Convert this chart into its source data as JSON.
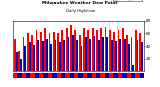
{
  "title": "Milwaukee Weather Dew Point",
  "subtitle": "Daily High/Low",
  "ylim": [
    0,
    80
  ],
  "background_color": "#ffffff",
  "bar_color_high": "#ff0000",
  "bar_color_low": "#0000bb",
  "dotted_line_color": "#888888",
  "high_values": [
    52,
    32,
    55,
    60,
    58,
    65,
    62,
    68,
    60,
    62,
    60,
    65,
    68,
    73,
    65,
    58,
    68,
    65,
    68,
    65,
    68,
    70,
    65,
    62,
    65,
    68,
    58,
    55,
    65,
    60
  ],
  "low_values": [
    30,
    20,
    40,
    46,
    42,
    50,
    48,
    52,
    44,
    50,
    46,
    50,
    54,
    58,
    50,
    40,
    55,
    52,
    56,
    50,
    55,
    55,
    50,
    48,
    52,
    52,
    44,
    10,
    50,
    46
  ],
  "n_bars": 30,
  "tick_positions": [
    0,
    2,
    4,
    6,
    8,
    10,
    12,
    14,
    16,
    18,
    20,
    22,
    24,
    26,
    28
  ],
  "tick_labels": [
    "1",
    "3",
    "5",
    "7",
    "9",
    "11",
    "13",
    "15",
    "17",
    "19",
    "21",
    "23",
    "25",
    "27",
    "29"
  ],
  "dotted_lines": [
    21.5,
    23.5
  ],
  "yticks": [
    20,
    40,
    60,
    80
  ],
  "legend_high_color": "#ff0000",
  "legend_low_color": "#0000bb"
}
